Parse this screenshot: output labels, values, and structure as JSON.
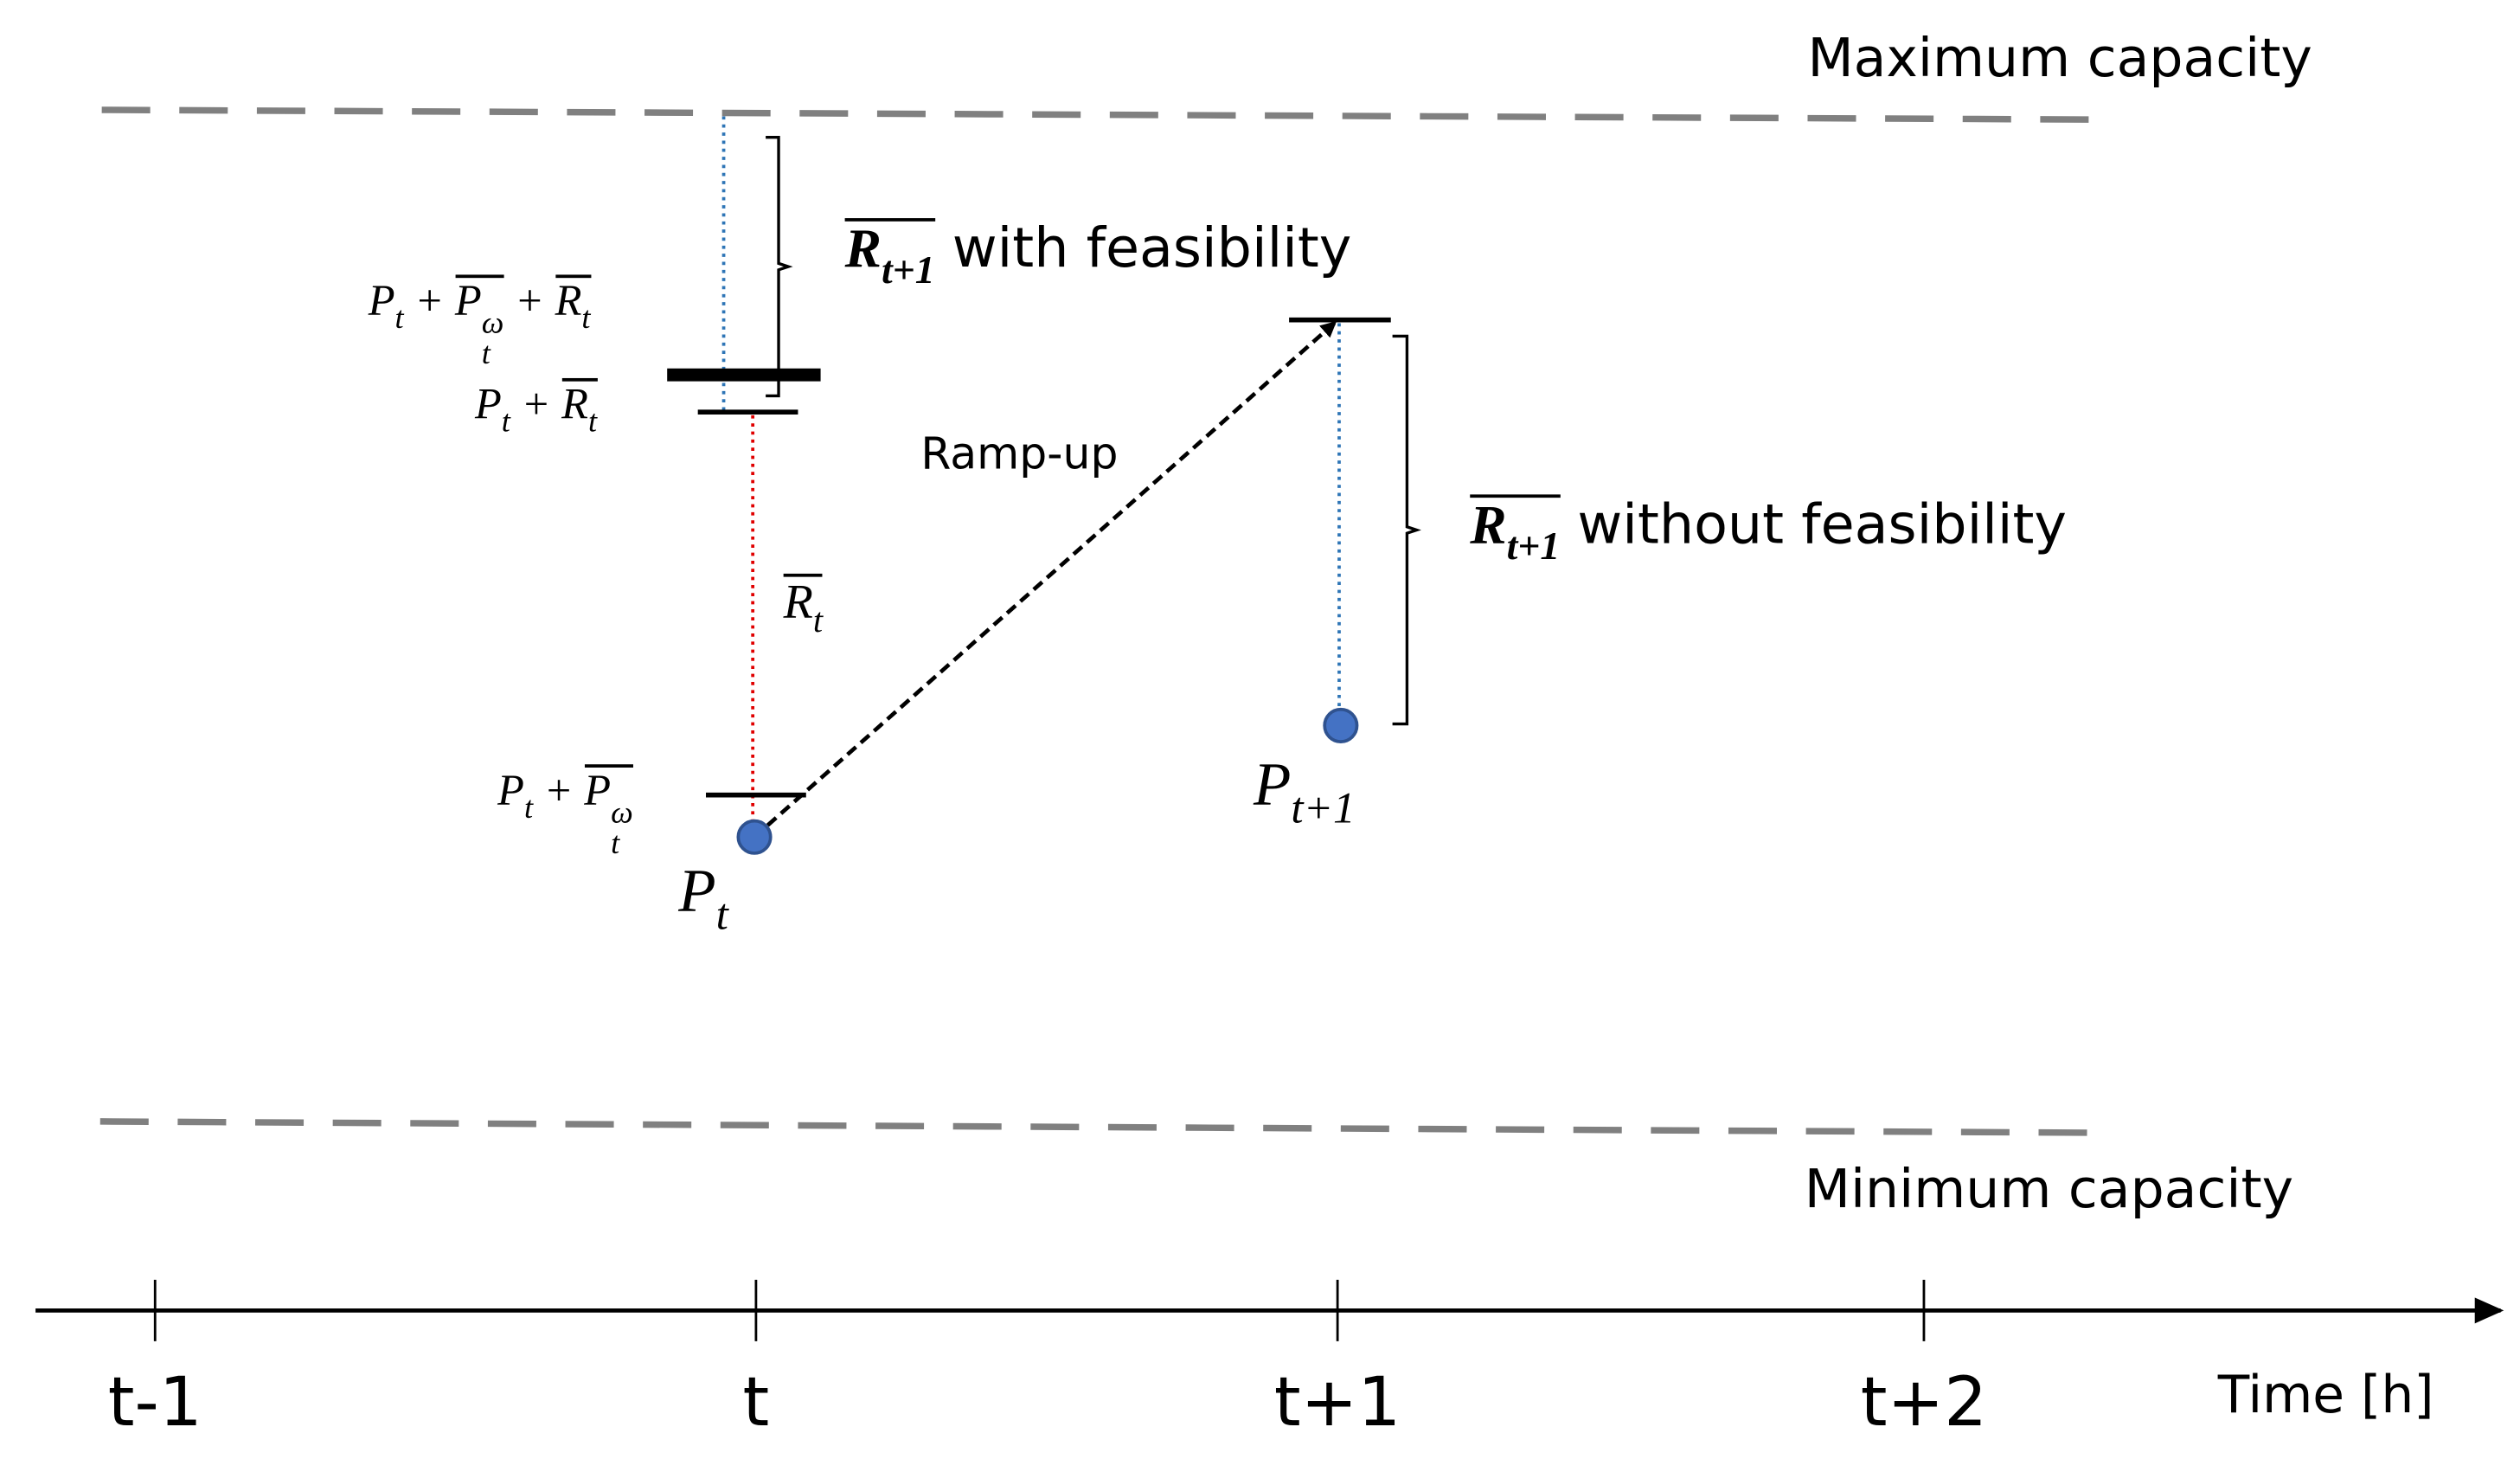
{
  "labels": {
    "maximum_capacity": "Maximum capacity",
    "minimum_capacity": "Minimum capacity",
    "ramp_up": "Ramp-up",
    "time_axis": "Time [h]"
  },
  "ticks": [
    "t-1",
    "t",
    "t+1",
    "t+2"
  ],
  "math_labels": [
    {
      "parts": [
        {
          "base": "R",
          "sub": "t+1",
          "overline": true,
          "bold": true
        },
        {
          "base": " with feasibility"
        }
      ]
    },
    {
      "parts": [
        {
          "base": "R",
          "sub": "t+1",
          "overline": true,
          "bold": true
        },
        {
          "base": " without feasibility"
        }
      ]
    },
    {
      "parts": [
        {
          "base": "P",
          "sub": "t"
        },
        {
          "base": " + "
        },
        {
          "base": "P",
          "sub": "t",
          "sup": "ω",
          "overline": true
        },
        {
          "base": " + "
        },
        {
          "base": "R",
          "sub": "t",
          "overline": true
        }
      ]
    },
    {
      "parts": [
        {
          "base": "P",
          "sub": "t"
        },
        {
          "base": " + "
        },
        {
          "base": "R",
          "sub": "t",
          "overline": true
        }
      ]
    },
    {
      "parts": [
        {
          "base": "R",
          "sub": "t",
          "overline": true
        }
      ]
    },
    {
      "parts": [
        {
          "base": "P",
          "sub": "t"
        },
        {
          "base": " + "
        },
        {
          "base": "P",
          "sub": "t",
          "sup": "ω",
          "overline": true
        }
      ]
    },
    {
      "parts": [
        {
          "base": "P",
          "sub": "t"
        }
      ]
    },
    {
      "parts": [
        {
          "base": "P",
          "sub": "t+1"
        }
      ]
    }
  ]
}
